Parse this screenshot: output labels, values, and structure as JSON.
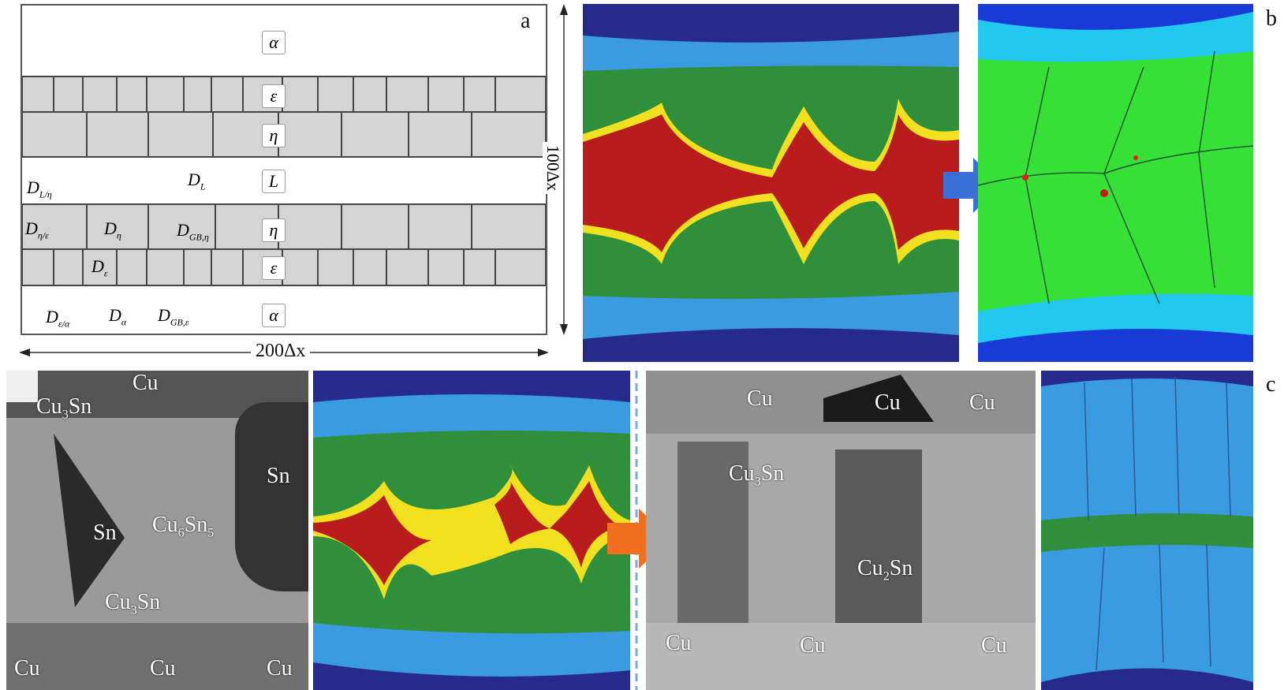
{
  "panels": {
    "a": "a",
    "b": "b",
    "c": "c"
  },
  "diagram": {
    "phases": {
      "alpha_top": "α",
      "epsilon_top": "ε",
      "eta_top": "η",
      "liquid": "L",
      "eta_bottom": "η",
      "epsilon_bottom": "ε",
      "alpha_bottom": "α"
    },
    "diffusivities": {
      "D_L": [
        "D",
        "L"
      ],
      "D_L_eta": [
        "D",
        "L/η"
      ],
      "D_eta_eps": [
        "D",
        "η/ε"
      ],
      "D_eta": [
        "D",
        "η"
      ],
      "D_GB_eta": [
        "D",
        "GB,η"
      ],
      "D_eps": [
        "D",
        "ε"
      ],
      "D_eps_alpha": [
        "D",
        "ε/α"
      ],
      "D_alpha": [
        "D",
        "α"
      ],
      "D_GB_eps": [
        "D",
        "GB,ε"
      ]
    },
    "width_label": "200Δx",
    "height_label": "100Δx"
  },
  "sem1": {
    "labels": {
      "cu_top": "Cu",
      "cu3sn_top": [
        "Cu",
        "3",
        "Sn"
      ],
      "sn_right": "Sn",
      "sn_left": "Sn",
      "cu6sn5": [
        "Cu",
        "6",
        "Sn",
        "5"
      ],
      "cu3sn_bottom": [
        "Cu",
        "3",
        "Sn"
      ],
      "cu_bl": "Cu",
      "cu_bm": "Cu",
      "cu_br": "Cu"
    }
  },
  "sem2": {
    "labels": {
      "cu1": "Cu",
      "cu2": "Cu",
      "cu3": "Cu",
      "cu3sn": [
        "Cu",
        "3",
        "Sn"
      ],
      "cu2sn": [
        "Cu",
        "2",
        "Sn"
      ],
      "cu4": "Cu",
      "cu5": "Cu",
      "cu6": "Cu"
    }
  },
  "colors": {
    "navy": "#262a8a",
    "light_blue": "#3a9be0",
    "green": "#2f8f3a",
    "red": "#b81c1c",
    "yellow": "#f0e020",
    "bright_green": "#36e036",
    "cyan": "#22c8f0",
    "arrow_blue": "#3a6fd8",
    "arrow_orange": "#f07020"
  }
}
